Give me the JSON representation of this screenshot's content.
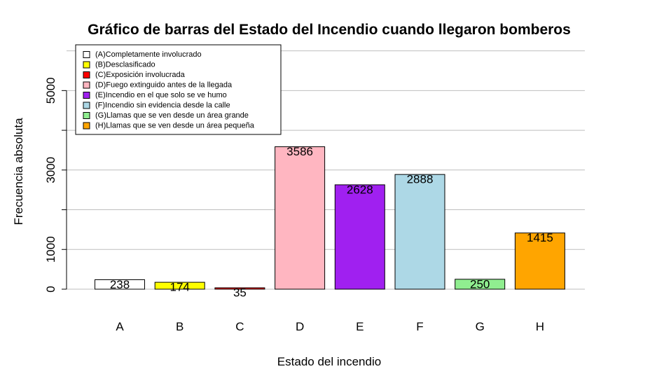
{
  "chart_data": {
    "type": "bar",
    "title": "Gráfico de barras del Estado del Incendio cuando llegaron bomberos",
    "xlabel": "Estado del incendio",
    "ylabel": "Frecuencia absoluta",
    "categories": [
      "A",
      "B",
      "C",
      "D",
      "E",
      "F",
      "G",
      "H"
    ],
    "values": [
      238,
      174,
      35,
      3586,
      2628,
      2888,
      250,
      1415
    ],
    "data_labels": [
      "238",
      "174",
      "35",
      "3586",
      "2628",
      "2888",
      "250",
      "1415"
    ],
    "colors": [
      "#ffffff",
      "#ffff00",
      "#ff0000",
      "#ffb6c1",
      "#a020f0",
      "#add8e6",
      "#90ee90",
      "#ffa500"
    ],
    "ylim": [
      0,
      6000
    ],
    "yticks": [
      0,
      1000,
      2000,
      3000,
      4000,
      5000
    ],
    "ytick_labels": [
      "0",
      "1000",
      "",
      "3000",
      "",
      "5000"
    ],
    "grid": true,
    "legend_position": "top-left",
    "legend": [
      "(A)Completamente involucrado",
      "(B)Desclasificado",
      "(C)Exposición involucrada",
      "(D)Fuego extinguido antes de la llegada",
      "(E)Incendio en el que solo se ve humo",
      "(F)Incendio sin evidencia desde la calle",
      "(G)Llamas que se ven desde un área grande",
      "(H)Llamas que se ven desde un área pequeña"
    ]
  }
}
